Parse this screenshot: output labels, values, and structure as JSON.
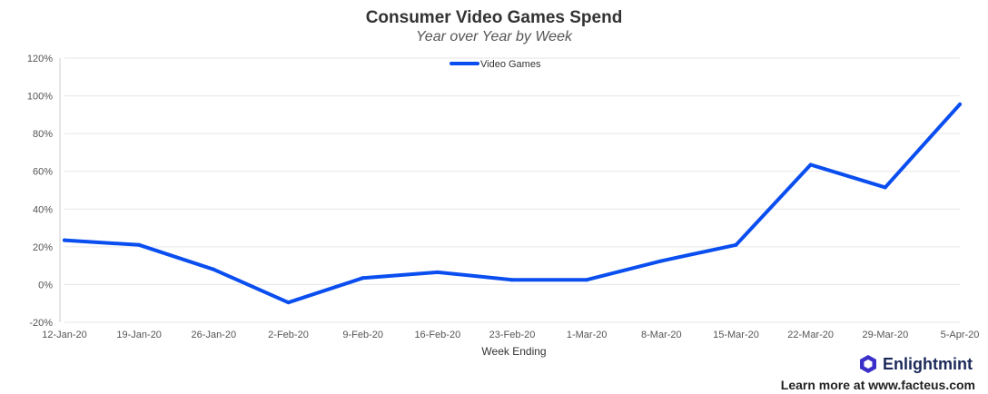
{
  "chart_data": {
    "type": "line",
    "title": "Consumer Video Games Spend",
    "subtitle": "Year over Year by Week",
    "xlabel": "Week Ending",
    "ylabel": "",
    "categories": [
      "12-Jan-20",
      "19-Jan-20",
      "26-Jan-20",
      "2-Feb-20",
      "9-Feb-20",
      "16-Feb-20",
      "23-Feb-20",
      "1-Mar-20",
      "8-Mar-20",
      "15-Mar-20",
      "22-Mar-20",
      "29-Mar-20",
      "5-Apr-20"
    ],
    "series": [
      {
        "name": "Video Games",
        "color": "#0a4ef0",
        "values": [
          23.5,
          21,
          8,
          -9.5,
          3.5,
          6.5,
          2.5,
          2.5,
          12.5,
          21,
          63.5,
          51.5,
          95.5
        ]
      }
    ],
    "ylim": [
      -20,
      120
    ],
    "yticks": [
      -20,
      0,
      20,
      40,
      60,
      80,
      100,
      120
    ],
    "ytick_labels": [
      "-20%",
      "0%",
      "20%",
      "40%",
      "60%",
      "80%",
      "100%",
      "120%"
    ],
    "legend_position": "top-center",
    "grid": true
  },
  "branding": {
    "logo_icon": "hexagon-logo-icon",
    "name": "Enlightmint",
    "footer": "Learn more at www.facteus.com",
    "logo_color": "#3b2fc9"
  }
}
